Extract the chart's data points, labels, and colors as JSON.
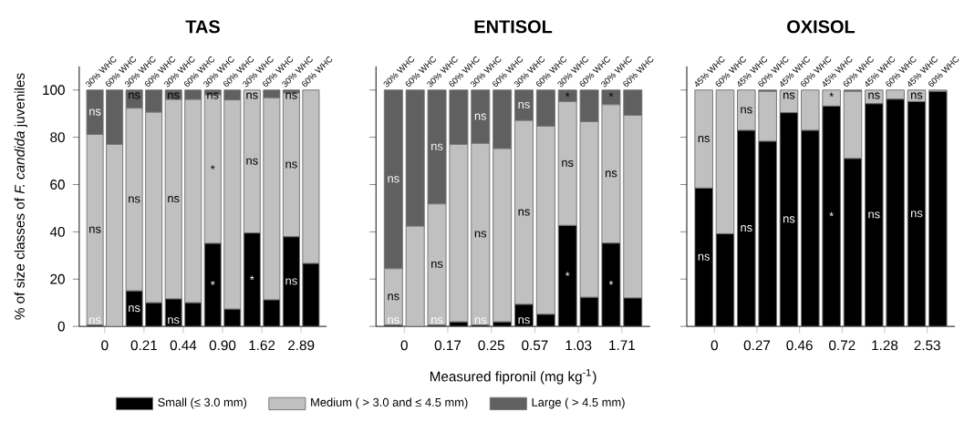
{
  "chart_data": [
    {
      "type": "bar",
      "stacked": true,
      "title": "TAS",
      "ylabel": "% of size classes of *F. candida* juveniles",
      "legend": "bottom",
      "categories": [
        "30% WHC",
        "60% WHC",
        "30% WHC",
        "60% WHC",
        "30% WHC",
        "60% WHC",
        "30% WHC",
        "60% WHC",
        "30% WHC",
        "60% WHC",
        "30% WHC",
        "60% WHC"
      ],
      "series": [
        {
          "name": "Small (≤ 3.0 mm)",
          "color": "#000000",
          "values": [
            0.5,
            0,
            15.0,
            10.0,
            11.6,
            10.0,
            35.1,
            7.3,
            39.5,
            11.2,
            37.9,
            26.6
          ],
          "value_labels": [
            "ns",
            null,
            "ns",
            null,
            "ns",
            null,
            "*",
            null,
            "*",
            null,
            "ns",
            null
          ]
        },
        {
          "name": "Medium ( > 3.0 and ≤ 4.5 mm)",
          "color": "#c0c0c0",
          "values": [
            80.7,
            77.0,
            77.3,
            80.6,
            84.4,
            86.0,
            62.8,
            88.5,
            60.5,
            85.5,
            60.8,
            73.4
          ],
          "value_labels": [
            "ns",
            null,
            "ns",
            null,
            "ns",
            null,
            "*",
            null,
            "ns",
            null,
            "ns",
            null
          ]
        },
        {
          "name": "Large ( > 4.5 mm)",
          "color": "#606060",
          "values": [
            18.8,
            23.0,
            7.7,
            9.4,
            4.0,
            4.0,
            2.1,
            4.2,
            0,
            3.3,
            1.3,
            0
          ],
          "value_labels": [
            "ns",
            null,
            "ns",
            null,
            "ns",
            null,
            "ns",
            null,
            "ns",
            null,
            "ns",
            null
          ]
        }
      ],
      "annotations": [
        "0",
        "0.21",
        "0.44",
        "0.90",
        "1.62",
        "2.89"
      ],
      "ylim": [
        0,
        110
      ],
      "yticks": [
        0,
        20,
        40,
        60,
        80,
        100
      ]
    },
    {
      "type": "bar",
      "stacked": true,
      "title": "ENTISOL",
      "xlabel": "Measured fipronil (mg kg$^{-1}$)",
      "tick_labels": "x",
      "categories": [
        "30% WHC",
        "60% WHC",
        "30% WHC",
        "60% WHC",
        "30% WHC",
        "60% WHC",
        "30% WHC",
        "60% WHC",
        "30% WHC",
        "60% WHC",
        "30% WHC",
        "60% WHC"
      ],
      "series": [
        {
          "color": "#000000",
          "values": [
            0.5,
            0,
            0.5,
            1.9,
            0.6,
            1.9,
            9.3,
            5.1,
            42.7,
            12.3,
            35.2,
            12.0
          ],
          "value_labels": [
            "ns",
            null,
            "ns",
            null,
            "ns",
            null,
            "ns",
            null,
            "*",
            null,
            "*",
            null
          ]
        },
        {
          "color": "#c0c0c0",
          "values": [
            23.9,
            42.4,
            51.3,
            75.1,
            76.8,
            73.3,
            77.8,
            79.6,
            52.4,
            74.3,
            58.6,
            77.3
          ],
          "value_labels": [
            "ns",
            null,
            "ns",
            null,
            "ns",
            null,
            "ns",
            null,
            "ns",
            null,
            "ns",
            null
          ]
        },
        {
          "color": "#606060",
          "values": [
            75.6,
            57.6,
            48.2,
            23.0,
            22.6,
            24.8,
            12.9,
            15.3,
            4.9,
            13.4,
            6.2,
            10.7
          ],
          "value_labels": [
            "ns",
            null,
            "ns",
            null,
            "ns",
            null,
            "ns",
            null,
            "*",
            null,
            "*",
            null
          ]
        }
      ],
      "annotations": [
        "0",
        "0.17",
        "0.25",
        "0.57",
        "1.03",
        "1.71"
      ],
      "ylim": [
        0,
        110
      ],
      "yticks": [
        0,
        20,
        40,
        60,
        80,
        100
      ]
    },
    {
      "type": "bar",
      "stacked": true,
      "title": "OXISOL",
      "tick_labels": "x",
      "categories": [
        "45% WHC",
        "60% WHC",
        "45% WHC",
        "60% WHC",
        "45% WHC",
        "60% WHC",
        "45% WHC",
        "60% WHC",
        "45% WHC",
        "60% WHC",
        "45% WHC",
        "60% WHC"
      ],
      "series": [
        {
          "color": "#000000",
          "values": [
            58.5,
            39.2,
            82.9,
            78.3,
            90.4,
            82.9,
            93.2,
            71.0,
            94.2,
            96.1,
            95.1,
            99.4
          ],
          "value_labels": [
            "ns",
            null,
            "ns",
            null,
            "ns",
            null,
            "*",
            null,
            "ns",
            null,
            "ns",
            null
          ]
        },
        {
          "color": "#c0c0c0",
          "values": [
            41.5,
            60.8,
            17.1,
            21.1,
            9.6,
            17.1,
            6.8,
            28.4,
            5.8,
            3.9,
            4.9,
            0.6
          ],
          "value_labels": [
            "ns",
            null,
            "ns",
            null,
            "ns",
            null,
            "*",
            null,
            "ns",
            null,
            "ns",
            null
          ]
        },
        {
          "color": "#606060",
          "values": [
            0,
            0,
            0,
            0.6,
            0,
            0,
            0,
            0.6,
            0,
            0,
            0,
            0
          ]
        }
      ],
      "annotations": [
        "0",
        "0.27",
        "0.46",
        "0.72",
        "1.28",
        "2.53"
      ],
      "ylim": [
        0,
        110
      ],
      "yticks": [
        0,
        20,
        40,
        60,
        80,
        100
      ]
    }
  ]
}
